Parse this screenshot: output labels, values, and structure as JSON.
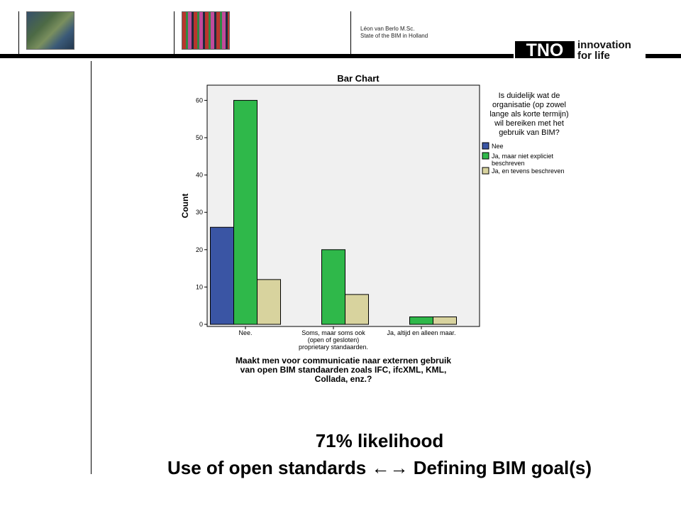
{
  "header": {
    "author_line1": "Léon van Berlo M.Sc.",
    "author_line2": "State of the BIM in Holland",
    "logo_text": "TNO",
    "tagline_line1": "innovation",
    "tagline_line2": "for life"
  },
  "chart_data": {
    "type": "bar",
    "title": "Bar Chart",
    "ylabel": "Count",
    "xlabel_lines": [
      "Maakt men voor communicatie naar externen gebruik",
      "van open BIM standaarden zoals IFC, ifcXML, KML,",
      "Collada, enz.?"
    ],
    "ylim": [
      0,
      62
    ],
    "yticks": [
      0,
      10,
      20,
      30,
      40,
      50,
      60
    ],
    "categories": [
      [
        "Nee."
      ],
      [
        "Soms, maar soms ook",
        "(open of gesloten)",
        "proprietary standaarden."
      ],
      [
        "Ja, altijd en alleen maar."
      ]
    ],
    "legend_title_lines": [
      "Is duidelijk wat de",
      "organisatie (op zowel",
      "lange als korte termijn)",
      "wil bereiken met het",
      "gebruik van BIM?"
    ],
    "series": [
      {
        "name_lines": [
          "Nee"
        ],
        "color": "#3a55a4",
        "values": [
          26,
          0,
          0
        ]
      },
      {
        "name_lines": [
          "Ja, maar niet expliciet",
          "beschreven"
        ],
        "color": "#2fb84a",
        "values": [
          60,
          20,
          2
        ]
      },
      {
        "name_lines": [
          "Ja, en tevens beschreven"
        ],
        "color": "#d8d39e",
        "values": [
          12,
          8,
          2
        ]
      }
    ],
    "grid": false,
    "legend_position": "right"
  },
  "footer": {
    "line1": "71% likelihood",
    "line2": "Use of open standards ←→ Defining BIM goal(s)"
  }
}
